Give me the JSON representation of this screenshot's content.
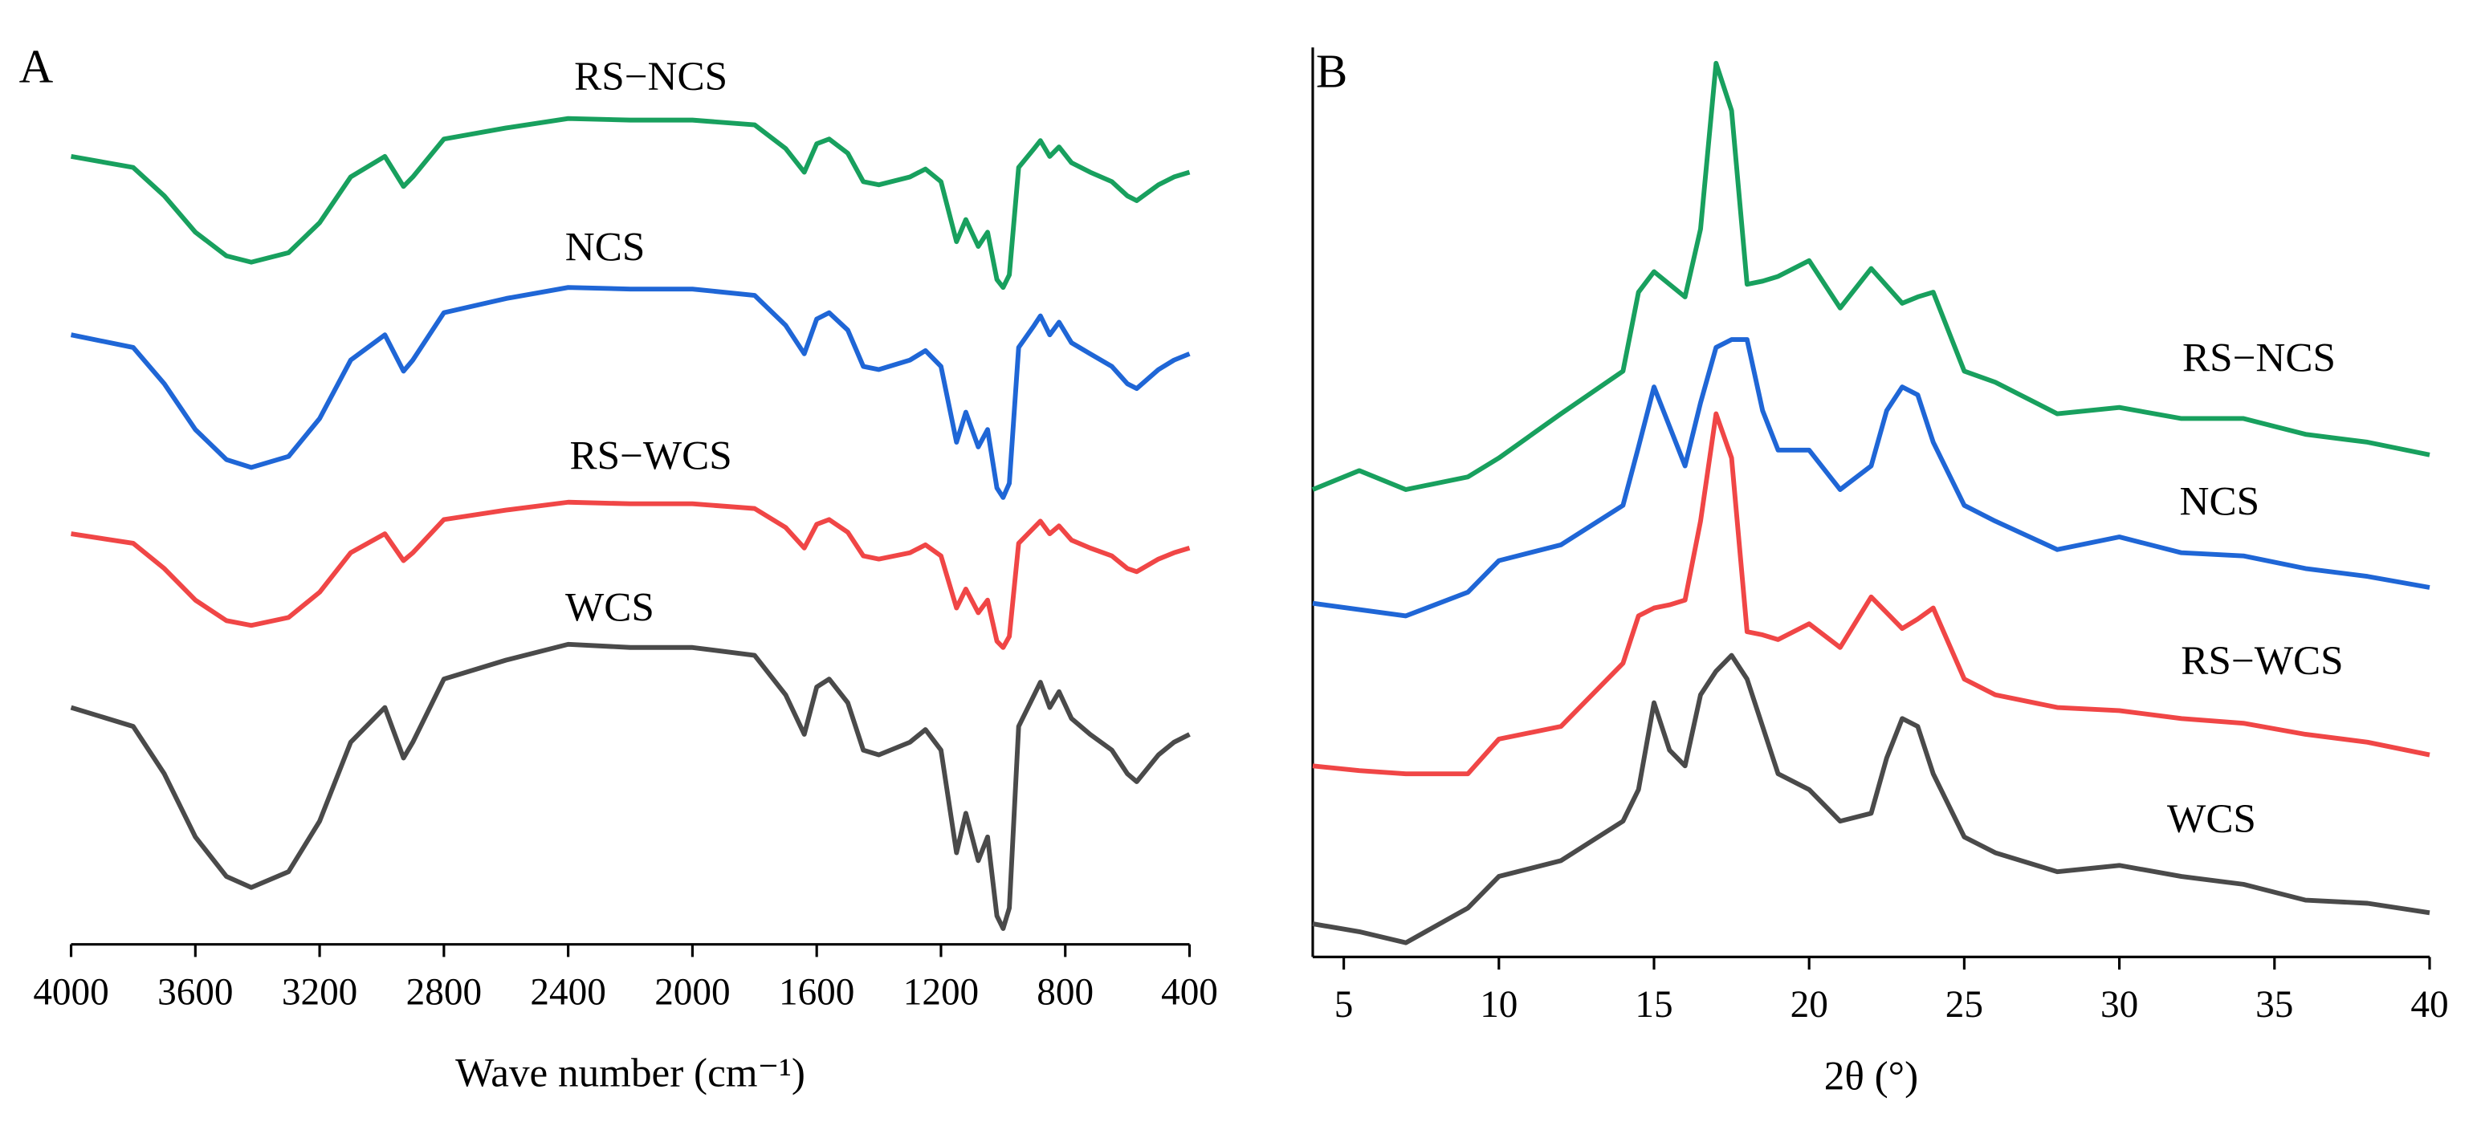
{
  "chart_data": [
    {
      "type": "line",
      "panel_label": "A",
      "x_label": "Wave number (cm⁻¹)",
      "xlim": [
        4000,
        400
      ],
      "xticks": [
        4000,
        3600,
        3200,
        2800,
        2400,
        2000,
        1600,
        1200,
        800,
        400
      ],
      "ylim": [
        0,
        568
      ],
      "x": [
        4000,
        3800,
        3700,
        3600,
        3500,
        3420,
        3300,
        3200,
        3100,
        2990,
        2930,
        2900,
        2800,
        2600,
        2400,
        2200,
        2000,
        1800,
        1700,
        1640,
        1600,
        1560,
        1500,
        1450,
        1400,
        1300,
        1250,
        1200,
        1150,
        1120,
        1080,
        1050,
        1020,
        1000,
        980,
        950,
        900,
        880,
        850,
        820,
        780,
        720,
        650,
        600,
        570,
        500,
        450,
        400
      ],
      "series": [
        {
          "name": "RS−NCS",
          "color": "#18a05e",
          "values": [
            499,
            492,
            474,
            451,
            436,
            432,
            438,
            457,
            486,
            499,
            480,
            486,
            510,
            517,
            523,
            522,
            522,
            519,
            504,
            489,
            507,
            510,
            501,
            483,
            481,
            486,
            491,
            483,
            445,
            459,
            442,
            451,
            421,
            416,
            424,
            492,
            504,
            509,
            499,
            505,
            495,
            489,
            483,
            474,
            471,
            481,
            486,
            489
          ]
        },
        {
          "name": "NCS",
          "color": "#1f66d6",
          "values": [
            386,
            378,
            355,
            326,
            307,
            302,
            309,
            333,
            370,
            386,
            363,
            370,
            400,
            409,
            416,
            415,
            415,
            411,
            392,
            374,
            396,
            400,
            389,
            366,
            364,
            370,
            376,
            366,
            318,
            337,
            315,
            326,
            289,
            283,
            292,
            378,
            392,
            398,
            386,
            394,
            381,
            374,
            366,
            355,
            352,
            364,
            370,
            374
          ]
        },
        {
          "name": "RS−WCS",
          "color": "#f04646",
          "values": [
            260,
            254,
            238,
            218,
            205,
            202,
            207,
            223,
            248,
            260,
            243,
            248,
            269,
            275,
            280,
            279,
            279,
            276,
            264,
            251,
            266,
            269,
            261,
            246,
            244,
            248,
            253,
            246,
            213,
            225,
            210,
            218,
            192,
            188,
            195,
            254,
            264,
            268,
            260,
            265,
            256,
            251,
            246,
            238,
            236,
            244,
            248,
            251
          ]
        },
        {
          "name": "WCS",
          "color": "#4a4a4a",
          "values": [
            150,
            138,
            108,
            68,
            43,
            36,
            46,
            78,
            128,
            150,
            118,
            128,
            168,
            180,
            190,
            188,
            188,
            183,
            158,
            133,
            163,
            168,
            153,
            123,
            120,
            128,
            136,
            123,
            58,
            83,
            53,
            68,
            18,
            10,
            23,
            138,
            158,
            166,
            150,
            160,
            143,
            133,
            123,
            108,
            103,
            120,
            128,
            133
          ]
        }
      ]
    },
    {
      "type": "line",
      "panel_label": "B",
      "x_label": "2θ (°)",
      "xlim": [
        4,
        40
      ],
      "xticks": [
        5,
        10,
        15,
        20,
        25,
        30,
        35,
        40
      ],
      "ylim": [
        0,
        576
      ],
      "x": [
        4,
        5.5,
        7,
        9,
        10,
        12,
        14,
        14.5,
        15,
        15.5,
        16,
        16.5,
        17,
        17.5,
        18,
        18.5,
        19,
        20,
        21,
        22,
        22.5,
        23,
        23.5,
        24,
        25,
        26,
        28,
        30,
        32,
        34,
        36,
        38,
        40
      ],
      "series": [
        {
          "name": "RS−NCS",
          "color": "#18a05e",
          "values": [
            296,
            308,
            296,
            304,
            316,
            344,
            371,
            421,
            434,
            426,
            418,
            461,
            566,
            536,
            426,
            428,
            431,
            441,
            411,
            436,
            425,
            414,
            418,
            421,
            371,
            364,
            344,
            348,
            341,
            341,
            331,
            326,
            318
          ]
        },
        {
          "name": "NCS",
          "color": "#1f66d6",
          "values": [
            224,
            220,
            216,
            231,
            251,
            261,
            286,
            323,
            361,
            336,
            311,
            351,
            386,
            391,
            391,
            346,
            321,
            321,
            296,
            311,
            346,
            361,
            356,
            326,
            286,
            276,
            258,
            266,
            256,
            254,
            246,
            241,
            234
          ]
        },
        {
          "name": "RS−WCS",
          "color": "#f04646",
          "values": [
            121,
            118,
            116,
            116,
            138,
            146,
            186,
            216,
            221,
            223,
            226,
            276,
            344,
            316,
            206,
            204,
            201,
            211,
            196,
            228,
            218,
            208,
            214,
            221,
            176,
            166,
            158,
            156,
            151,
            148,
            141,
            136,
            128
          ]
        },
        {
          "name": "WCS",
          "color": "#4a4a4a",
          "values": [
            21,
            16,
            9,
            31,
            51,
            61,
            86,
            106,
            161,
            131,
            121,
            166,
            181,
            191,
            176,
            146,
            116,
            106,
            86,
            91,
            126,
            151,
            146,
            116,
            76,
            66,
            54,
            58,
            51,
            46,
            36,
            34,
            28
          ]
        }
      ]
    }
  ]
}
